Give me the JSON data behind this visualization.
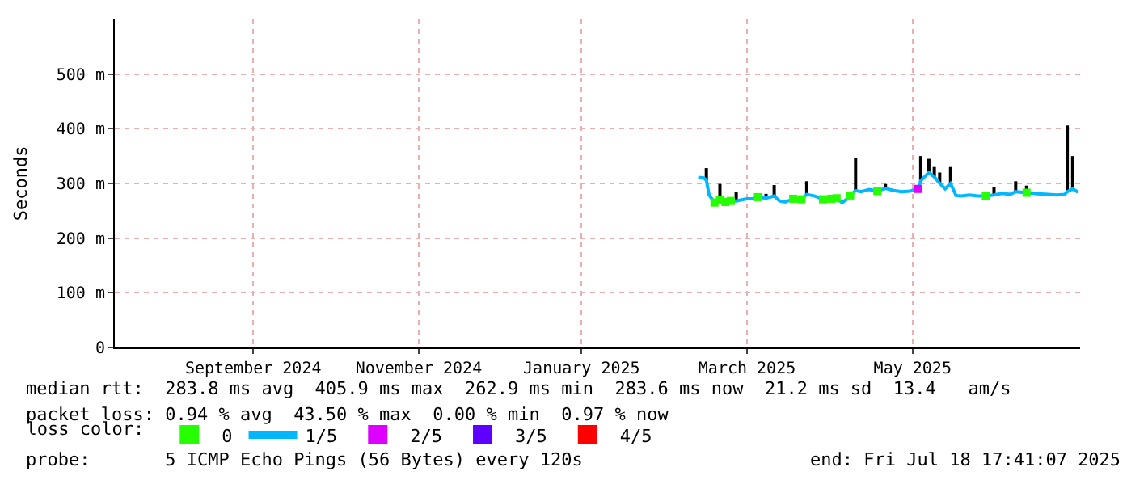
{
  "chart_data": {
    "type": "line",
    "ylabel": "Seconds",
    "xlim": [
      "2024-07-28",
      "2025-07-18T17:41"
    ],
    "xticks": [
      {
        "value": "2024-09-17",
        "label": "September 2024"
      },
      {
        "value": "2024-11-17",
        "label": "November 2024"
      },
      {
        "value": "2025-01-16",
        "label": "January 2025"
      },
      {
        "value": "2025-03-18",
        "label": "March 2025"
      },
      {
        "value": "2025-05-18",
        "label": "May 2025"
      }
    ],
    "ylim": [
      0,
      600
    ],
    "yticks": [
      0,
      {
        "value": 100,
        "label": "100 m"
      },
      {
        "value": 200,
        "label": "200 m"
      },
      {
        "value": 300,
        "label": "300 m"
      },
      {
        "value": 400,
        "label": "400 m"
      },
      {
        "value": 500,
        "label": "500 m"
      }
    ],
    "grid": true,
    "legend": "bottom",
    "legend_title": "loss color:",
    "series": [
      {
        "name": "0",
        "type": "scatter",
        "marker": "square",
        "color": "#26ff00",
        "x": [
          "2025-03-06",
          "2025-03-08",
          "2025-03-10",
          "2025-03-12",
          "2025-03-22",
          "2025-04-04",
          "2025-04-07",
          "2025-04-15",
          "2025-04-18",
          "2025-04-20",
          "2025-04-25",
          "2025-05-05",
          "2025-06-14",
          "2025-06-29"
        ],
        "values": [
          265,
          270,
          266,
          268,
          275,
          272,
          271,
          271,
          272,
          273,
          278,
          286,
          277,
          283
        ]
      },
      {
        "name": "1/5",
        "color": "#00b8ff",
        "x": [
          "2025-02-28",
          "2025-03-02",
          "2025-03-03",
          "2025-03-04",
          "2025-03-06",
          "2025-03-08",
          "2025-03-10",
          "2025-03-12",
          "2025-03-14",
          "2025-03-16",
          "2025-03-18",
          "2025-03-20",
          "2025-03-22",
          "2025-03-25",
          "2025-03-28",
          "2025-03-30",
          "2025-04-01",
          "2025-04-04",
          "2025-04-07",
          "2025-04-09",
          "2025-04-12",
          "2025-04-15",
          "2025-04-18",
          "2025-04-20",
          "2025-04-22",
          "2025-04-24",
          "2025-04-25",
          "2025-04-27",
          "2025-04-29",
          "2025-05-02",
          "2025-05-05",
          "2025-05-08",
          "2025-05-11",
          "2025-05-14",
          "2025-05-17",
          "2025-05-20",
          "2025-05-21",
          "2025-05-24",
          "2025-05-26",
          "2025-05-28",
          "2025-05-30",
          "2025-06-01",
          "2025-06-03",
          "2025-06-05",
          "2025-06-08",
          "2025-06-11",
          "2025-06-14",
          "2025-06-17",
          "2025-06-20",
          "2025-06-23",
          "2025-06-25",
          "2025-06-29",
          "2025-07-03",
          "2025-07-07",
          "2025-07-10",
          "2025-07-13",
          "2025-07-14",
          "2025-07-16",
          "2025-07-18"
        ],
        "values": [
          311,
          310,
          306,
          279,
          265,
          270,
          266,
          268,
          268,
          270,
          272,
          272,
          275,
          273,
          277,
          268,
          266,
          272,
          271,
          280,
          277,
          271,
          272,
          273,
          265,
          272,
          278,
          287,
          285,
          289,
          286,
          291,
          287,
          285,
          286,
          290,
          305,
          320,
          312,
          300,
          290,
          300,
          278,
          277,
          279,
          277,
          277,
          279,
          282,
          280,
          285,
          283,
          281,
          280,
          279,
          280,
          285,
          290,
          284
        ],
        "errors": [
          null,
          null,
          [
            306,
            328
          ],
          null,
          null,
          [
            270,
            299
          ],
          null,
          null,
          [
            268,
            284
          ],
          null,
          null,
          null,
          null,
          [
            273,
            281
          ],
          [
            277,
            297
          ],
          null,
          null,
          null,
          null,
          [
            280,
            304
          ],
          null,
          null,
          null,
          null,
          null,
          null,
          null,
          [
            287,
            346
          ],
          null,
          null,
          null,
          [
            291,
            299
          ],
          null,
          null,
          null,
          null,
          [
            305,
            350
          ],
          [
            320,
            345
          ],
          [
            312,
            330
          ],
          [
            300,
            320
          ],
          null,
          [
            300,
            330
          ],
          null,
          null,
          null,
          null,
          null,
          [
            279,
            294
          ],
          null,
          null,
          [
            285,
            304
          ],
          [
            283,
            296
          ],
          null,
          null,
          null,
          null,
          [
            285,
            406
          ],
          [
            290,
            350
          ],
          null
        ]
      },
      {
        "name": "2/5",
        "type": "scatter",
        "marker": "square",
        "color": "#dd00ff",
        "x": [
          "2025-05-20"
        ],
        "values": [
          290
        ]
      },
      {
        "name": "3/5",
        "type": "scatter",
        "marker": "square",
        "color": "#5e00ff"
      },
      {
        "name": "4/5",
        "type": "scatter",
        "marker": "square",
        "color": "#ff0000"
      }
    ],
    "annotations": [
      "median rtt:  283.8 ms avg  405.9 ms max  262.9 ms min  283.6 ms now  21.2 ms sd  13.4   am/s",
      "packet loss: 0.94 % avg  43.50 % max  0.00 % min  0.97 % now",
      "probe:       5 ICMP Echo Pings (56 Bytes) every 120s",
      "end: Fri Jul 18 17:41:07 2025"
    ]
  }
}
